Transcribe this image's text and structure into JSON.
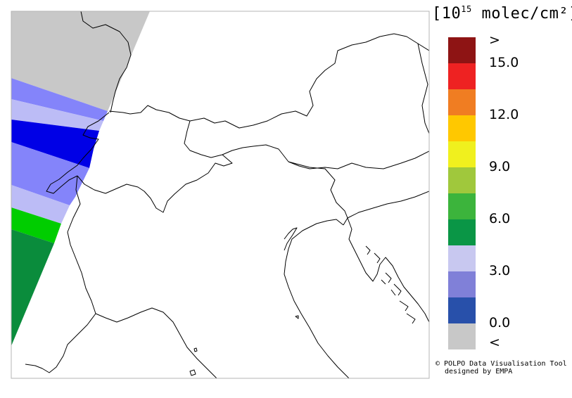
{
  "legend": {
    "unit_prefix": "[10",
    "unit_exponent": "15",
    "unit_suffix": " molec/cm²]",
    "colors": {
      "over": "#8e1414",
      "c15": "#ee2222",
      "c13_5": "#f07d22",
      "c12": "#ffc800",
      "c10_5": "#f0f01e",
      "c9": "#a0c83c",
      "c7_5": "#3cb43c",
      "c6": "#0a9646",
      "c4_5": "#c8c8f0",
      "c3": "#8080d8",
      "c1_5": "#2850aa",
      "under": "#c8c8c8"
    },
    "tick_labels": [
      ">",
      "15.0",
      "12.0",
      "9.0",
      "6.0",
      "3.0",
      "0.0",
      "<"
    ]
  },
  "credits": {
    "line1": "© POLPO Data Visualisation Tool",
    "line2": "designed by EMPA"
  },
  "swath_colors": {
    "gray": "#c8c8c8",
    "light_periwinkle": "#bcbcf6",
    "medium_blue": "#8484fa",
    "deep_blue": "#0000e6",
    "bright_green": "#00cd00",
    "dark_green": "#0a8c3c"
  }
}
